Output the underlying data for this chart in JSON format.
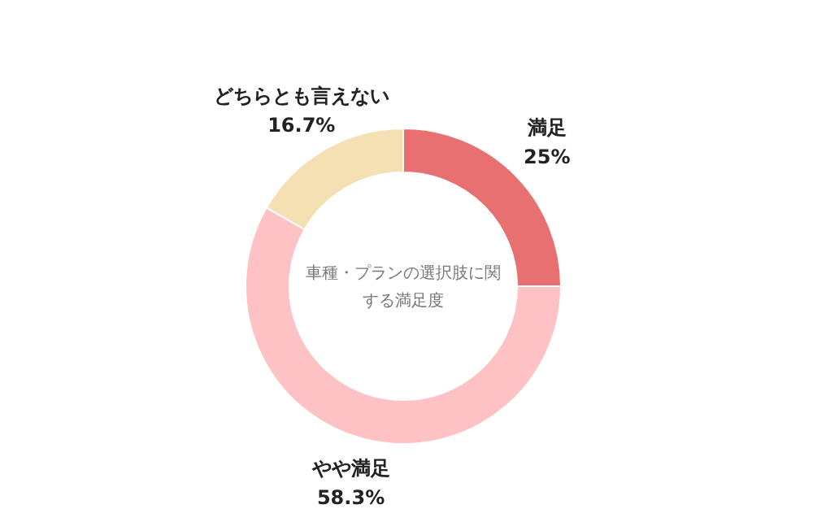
{
  "chart_data": {
    "type": "donut",
    "title": "車種・プランの選択肢に関する満足度",
    "categories": [
      "満足",
      "やや満足",
      "どちらとも言えない"
    ],
    "values": [
      25,
      58.3,
      16.7
    ],
    "value_labels": [
      "25%",
      "58.3%",
      "16.7%"
    ],
    "colors": [
      "#e87070",
      "#ffc2c4",
      "#f5e0b3"
    ]
  }
}
